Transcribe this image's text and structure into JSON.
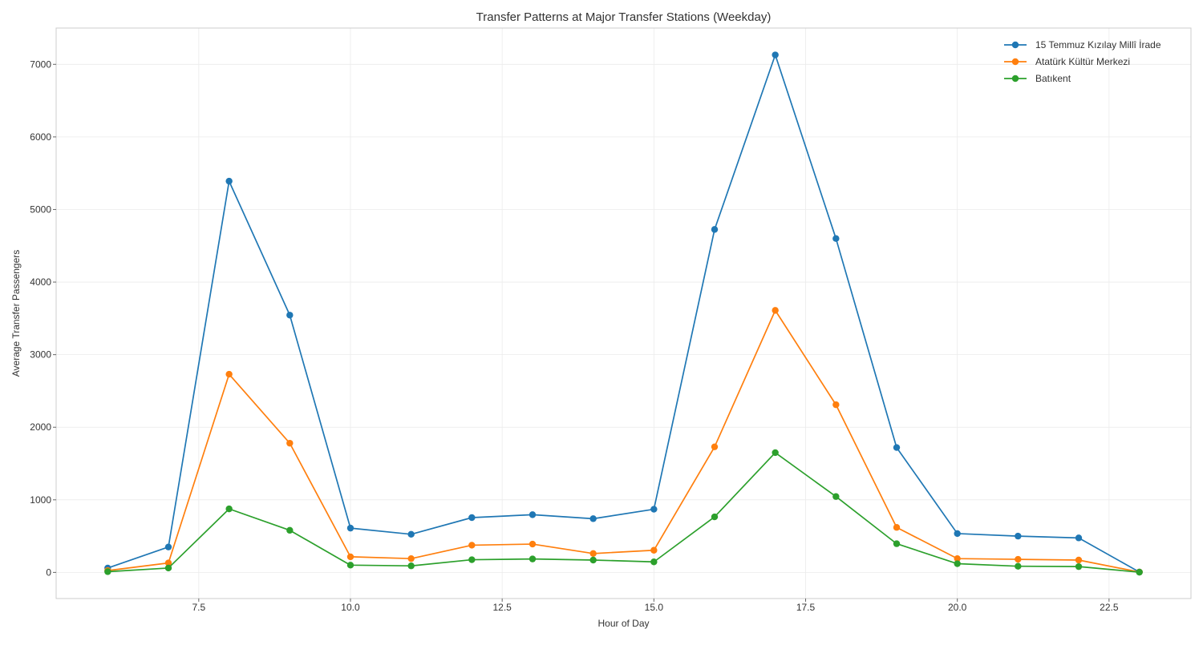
{
  "chart_data": {
    "type": "line",
    "title": "Transfer Patterns at Major Transfer Stations (Weekday)",
    "xlabel": "Hour of Day",
    "ylabel": "Average Transfer Passengers",
    "xlim": [
      5.15,
      23.85
    ],
    "ylim": [
      -360,
      7500
    ],
    "x_ticks": [
      7.5,
      10.0,
      12.5,
      15.0,
      17.5,
      20.0,
      22.5
    ],
    "x_tick_labels": [
      "7.5",
      "10.0",
      "12.5",
      "15.0",
      "17.5",
      "20.0",
      "22.5"
    ],
    "y_ticks": [
      0,
      1000,
      2000,
      3000,
      4000,
      5000,
      6000,
      7000
    ],
    "y_tick_labels": [
      "0",
      "1000",
      "2000",
      "3000",
      "4000",
      "5000",
      "6000",
      "7000"
    ],
    "grid": true,
    "legend_position": "top-right",
    "x": [
      6,
      7,
      8,
      9,
      10,
      11,
      12,
      13,
      14,
      15,
      16,
      17,
      18,
      19,
      20,
      21,
      22,
      23
    ],
    "series": [
      {
        "name": "15 Temmuz Kızılay Millî İrade",
        "color": "#1f77b4",
        "values": [
          60,
          350,
          5390,
          3545,
          610,
          525,
          755,
          795,
          740,
          870,
          4725,
          7130,
          4600,
          1720,
          535,
          500,
          475,
          5
        ]
      },
      {
        "name": "Atatürk Kültür Merkezi",
        "color": "#ff7f0e",
        "values": [
          25,
          130,
          2730,
          1780,
          215,
          190,
          375,
          390,
          260,
          305,
          1730,
          3610,
          2310,
          620,
          190,
          180,
          170,
          5
        ]
      },
      {
        "name": "Batıkent",
        "color": "#2ca02c",
        "values": [
          10,
          60,
          875,
          580,
          100,
          90,
          175,
          185,
          170,
          145,
          765,
          1650,
          1045,
          395,
          120,
          85,
          80,
          3
        ]
      }
    ]
  }
}
